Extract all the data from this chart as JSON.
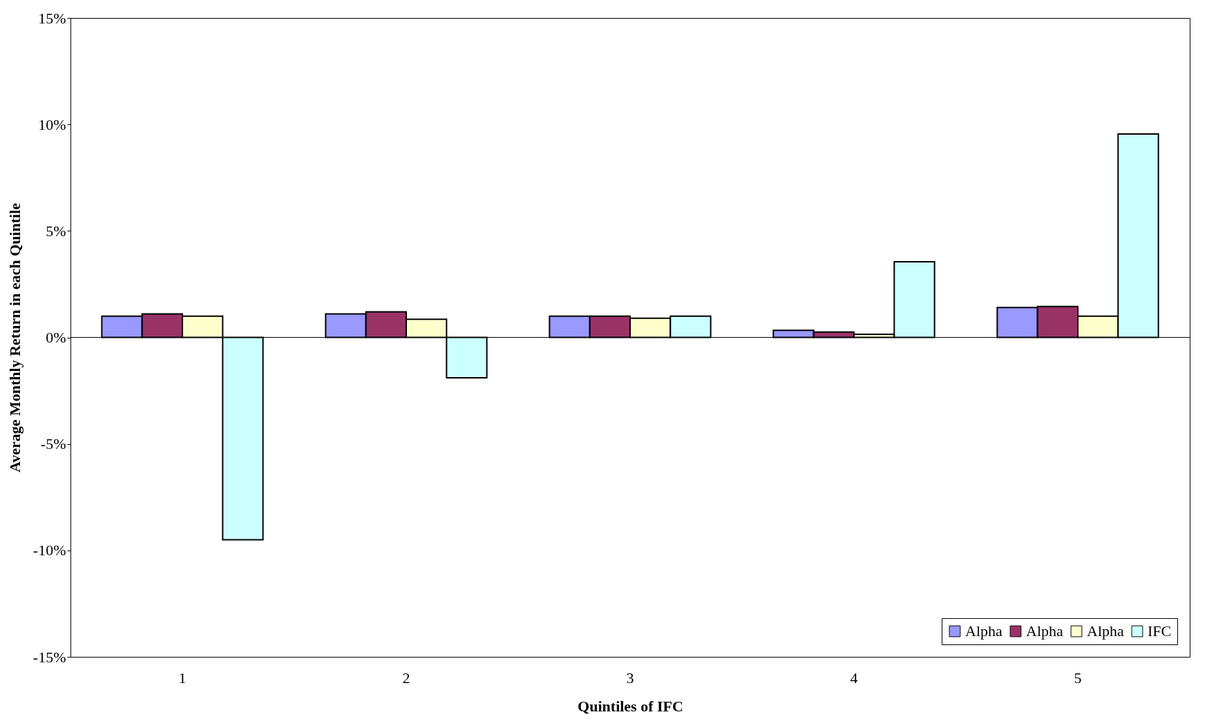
{
  "chart_data": {
    "type": "bar",
    "xlabel": "Quintiles of IFC",
    "ylabel": "Average Monthly Return in each Quintile",
    "categories": [
      "1",
      "2",
      "3",
      "4",
      "5"
    ],
    "series": [
      {
        "name": "Alpha",
        "color": "#9999ff",
        "values": [
          1.0,
          1.1,
          1.0,
          0.33,
          1.4
        ]
      },
      {
        "name": "Alpha",
        "color": "#993366",
        "values": [
          1.1,
          1.2,
          1.0,
          0.25,
          1.45
        ]
      },
      {
        "name": "Alpha",
        "color": "#ffffcc",
        "values": [
          1.0,
          0.85,
          0.9,
          0.15,
          1.0
        ]
      },
      {
        "name": "IFC",
        "color": "#ccffff",
        "values": [
          -9.5,
          -1.9,
          1.0,
          3.55,
          9.55
        ]
      }
    ],
    "ylim": [
      -15,
      15
    ],
    "yticks": [
      {
        "value": -15,
        "label": "-15%"
      },
      {
        "value": -10,
        "label": "-10%"
      },
      {
        "value": -5,
        "label": "-5%"
      },
      {
        "value": 0,
        "label": "0%"
      },
      {
        "value": 5,
        "label": "5%"
      },
      {
        "value": 10,
        "label": "10%"
      },
      {
        "value": 15,
        "label": "15%"
      }
    ],
    "legend": "bottom right"
  }
}
